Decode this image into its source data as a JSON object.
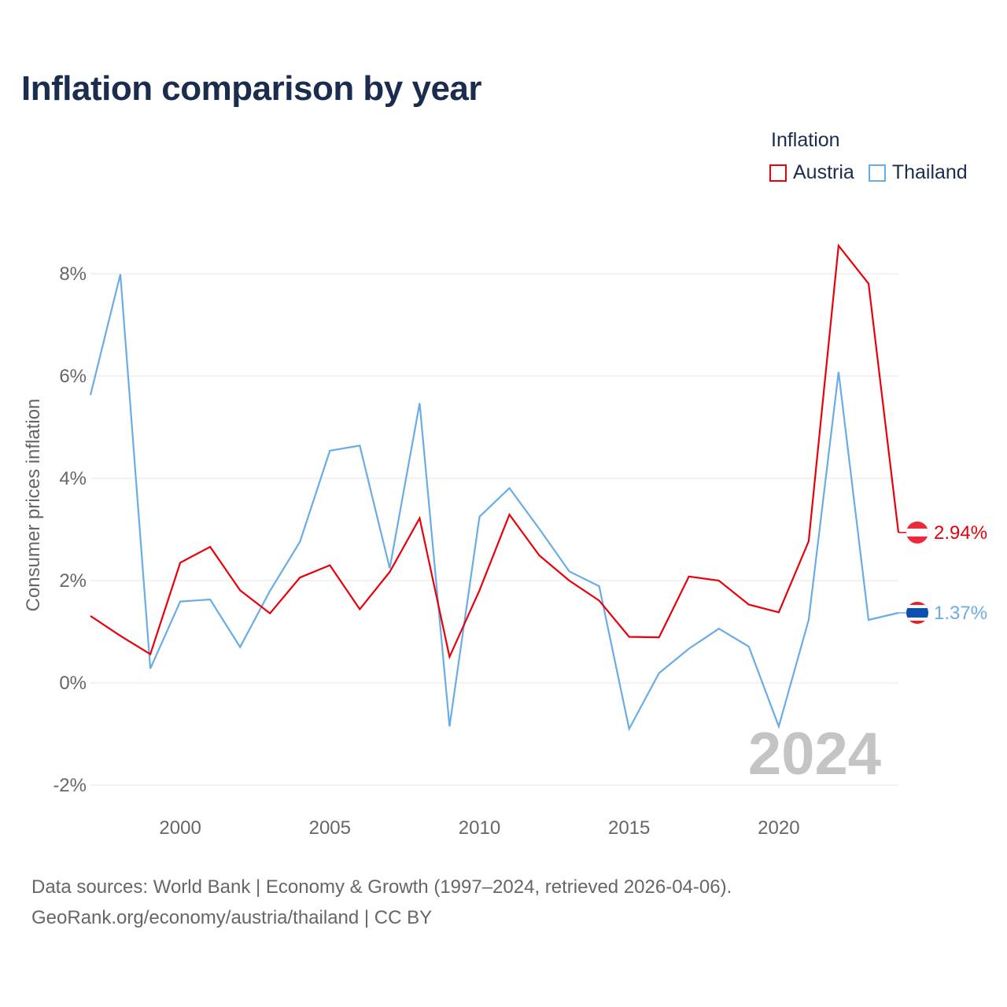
{
  "title": "Inflation comparison by year",
  "legend_title": "Inflation",
  "source_line1": "Data sources: World Bank | Economy & Growth (1997–2024, retrieved 2026-04-06).",
  "source_line2": "GeoRank.org/economy/austria/thailand | CC BY",
  "chart_data": {
    "type": "line",
    "title": "Inflation comparison by year",
    "xlabel": "",
    "ylabel": "Consumer prices inflation",
    "year_watermark": "2024",
    "xlim": [
      1997,
      2024
    ],
    "ylim": [
      -2,
      8.5
    ],
    "x_ticks": [
      2000,
      2005,
      2010,
      2015,
      2020
    ],
    "y_ticks": [
      -2,
      0,
      2,
      4,
      6,
      8
    ],
    "y_tick_labels": [
      "-2%",
      "0%",
      "2%",
      "4%",
      "6%",
      "8%"
    ],
    "grid": true,
    "legend_position": "top-right",
    "x": [
      1997,
      1998,
      1999,
      2000,
      2001,
      2002,
      2003,
      2004,
      2005,
      2006,
      2007,
      2008,
      2009,
      2010,
      2011,
      2012,
      2013,
      2014,
      2015,
      2016,
      2017,
      2018,
      2019,
      2020,
      2021,
      2022,
      2023,
      2024
    ],
    "series": [
      {
        "name": "Austria",
        "color": "#e8000b",
        "end_label": "2.94%",
        "values": [
          1.31,
          0.92,
          0.56,
          2.35,
          2.66,
          1.81,
          1.36,
          2.06,
          2.3,
          1.44,
          2.17,
          3.22,
          0.51,
          1.81,
          3.29,
          2.49,
          2.0,
          1.61,
          0.9,
          0.89,
          2.08,
          2.0,
          1.53,
          1.38,
          2.77,
          8.55,
          7.81,
          2.94
        ]
      },
      {
        "name": "Thailand",
        "color": "#6aace6",
        "end_label": "1.37%",
        "values": [
          5.63,
          7.99,
          0.28,
          1.59,
          1.63,
          0.7,
          1.8,
          2.76,
          4.54,
          4.64,
          2.24,
          5.47,
          -0.85,
          3.25,
          3.81,
          3.01,
          2.18,
          1.89,
          -0.9,
          0.19,
          0.67,
          1.06,
          0.71,
          -0.85,
          1.23,
          6.08,
          1.23,
          1.37
        ]
      }
    ]
  }
}
